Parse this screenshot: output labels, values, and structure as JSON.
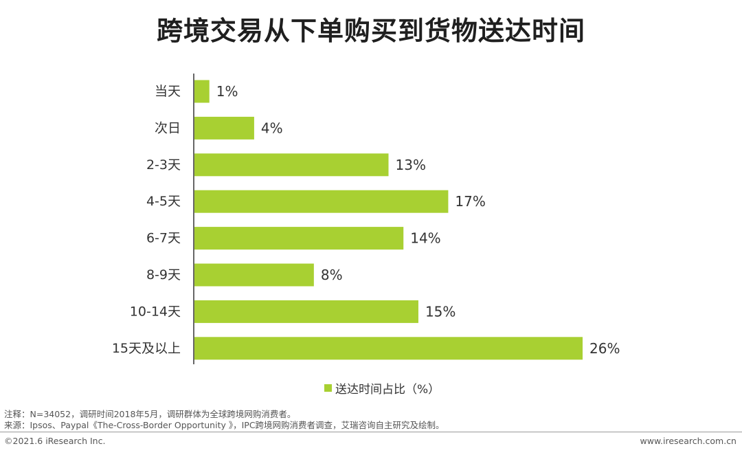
{
  "title": "跨境交易从下单购买到货物送达时间",
  "colors": {
    "bar": "#a8d032",
    "axis": "#333333"
  },
  "chart_data": {
    "type": "bar",
    "orientation": "horizontal",
    "categories": [
      "当天",
      "次日",
      "2-3天",
      "4-5天",
      "6-7天",
      "8-9天",
      "10-14天",
      "15天及以上"
    ],
    "values": [
      1,
      4,
      13,
      17,
      14,
      8,
      15,
      26
    ],
    "value_labels": [
      "1%",
      "4%",
      "13%",
      "17%",
      "14%",
      "8%",
      "15%",
      "26%"
    ],
    "series": [
      {
        "name": "送达时间占比（%）",
        "values": [
          1,
          4,
          13,
          17,
          14,
          8,
          15,
          26
        ]
      }
    ],
    "xlim": [
      0,
      26
    ],
    "grid": false,
    "legend_position": "bottom"
  },
  "legend": {
    "label": "送达时间占比（%）"
  },
  "notes": {
    "note1": "注释：N=34052，调研时间2018年5月，调研群体为全球跨境网购消费者。",
    "note2": "来源：Ipsos、Paypal《The-Cross-Border Opportunity 》，IPC跨境网购消费者调查，艾瑞咨询自主研究及绘制。"
  },
  "footer": {
    "copyright": "©2021.6 iResearch Inc.",
    "website": "www.iresearch.com.cn"
  }
}
